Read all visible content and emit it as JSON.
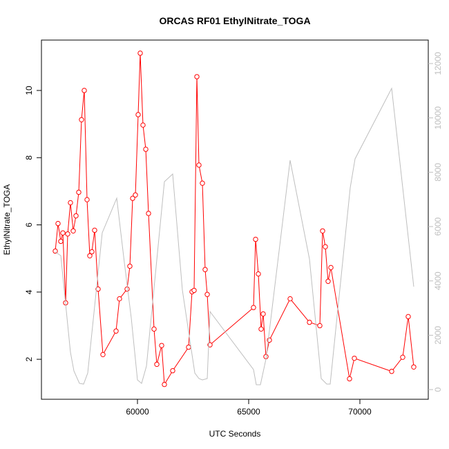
{
  "chart_data": {
    "type": "line",
    "title": "ORCAS RF01 EthylNitrate_TOGA",
    "x_label": "UTC Seconds",
    "y_label": "EthylNitrate_TOGA",
    "x": [
      56304,
      56428,
      56553,
      56646,
      56770,
      56863,
      56987,
      57112,
      57236,
      57360,
      57484,
      57608,
      57733,
      57857,
      57950,
      58074,
      58230,
      58447,
      59037,
      59192,
      59534,
      59658,
      59783,
      59907,
      60031,
      60124,
      60248,
      60373,
      60497,
      60745,
      60870,
      61087,
      61211,
      61584,
      62298,
      62453,
      62546,
      62671,
      62764,
      62919,
      63043,
      63137,
      63261,
      65217,
      65311,
      65435,
      65559,
      65652,
      65776,
      65932,
      66864,
      67733,
      68199,
      68323,
      68447,
      68571,
      68696,
      69534,
      69752,
      71429,
      71925,
      72174,
      72422
    ],
    "series": [
      {
        "color": "#ff0000",
        "marker": "open-circle",
        "values": [
          5.22,
          6.04,
          5.51,
          5.76,
          3.68,
          5.73,
          6.66,
          5.82,
          6.27,
          6.97,
          9.13,
          10.0,
          6.75,
          5.08,
          5.2,
          5.84,
          4.09,
          2.14,
          2.84,
          3.8,
          4.09,
          4.77,
          6.79,
          6.89,
          9.28,
          11.11,
          8.97,
          8.25,
          6.34,
          2.9,
          1.85,
          2.41,
          1.25,
          1.66,
          2.36,
          4.01,
          4.05,
          10.41,
          7.78,
          7.24,
          4.67,
          3.93,
          2.43,
          3.54,
          5.57,
          4.54,
          2.9,
          3.35,
          2.08,
          2.57,
          3.8,
          3.1,
          3.0,
          5.82,
          5.35,
          4.32,
          4.73,
          1.42,
          2.03,
          1.64,
          2.06,
          3.27,
          1.77
        ]
      },
      {
        "color": "#bebebe",
        "axis": "y2",
        "x": [
          56304,
          56553,
          56770,
          56987,
          57143,
          57391,
          57578,
          57764,
          58416,
          59068,
          59410,
          59720,
          60000,
          60186,
          60404,
          61211,
          61584,
          62019,
          62578,
          62764,
          62919,
          63137,
          63261,
          65217,
          65342,
          65528,
          65776,
          66863,
          67733,
          68261,
          68509,
          68665,
          69565,
          69783,
          71429,
          72422
        ],
        "values": [
          5060,
          4932,
          3150,
          1373,
          686,
          229,
          203,
          610,
          5772,
          7043,
          4678,
          2644,
          356,
          229,
          864,
          7653,
          7933,
          3661,
          610,
          407,
          356,
          407,
          2873,
          737,
          178,
          178,
          1119,
          8441,
          4805,
          407,
          203,
          203,
          7424,
          8492,
          11086,
          3788
        ]
      }
    ],
    "xlim": [
      55683,
      73075
    ],
    "xticks": [
      60000,
      65000,
      70000
    ],
    "ylim": [
      0.81,
      11.5
    ],
    "yticks": [
      2,
      4,
      6,
      8,
      10
    ],
    "y2lim": [
      -356,
      12864
    ],
    "y2ticks": [
      0,
      2000,
      4000,
      6000,
      8000,
      10000,
      12000
    ],
    "y2_tick_color": "#bebebe"
  }
}
